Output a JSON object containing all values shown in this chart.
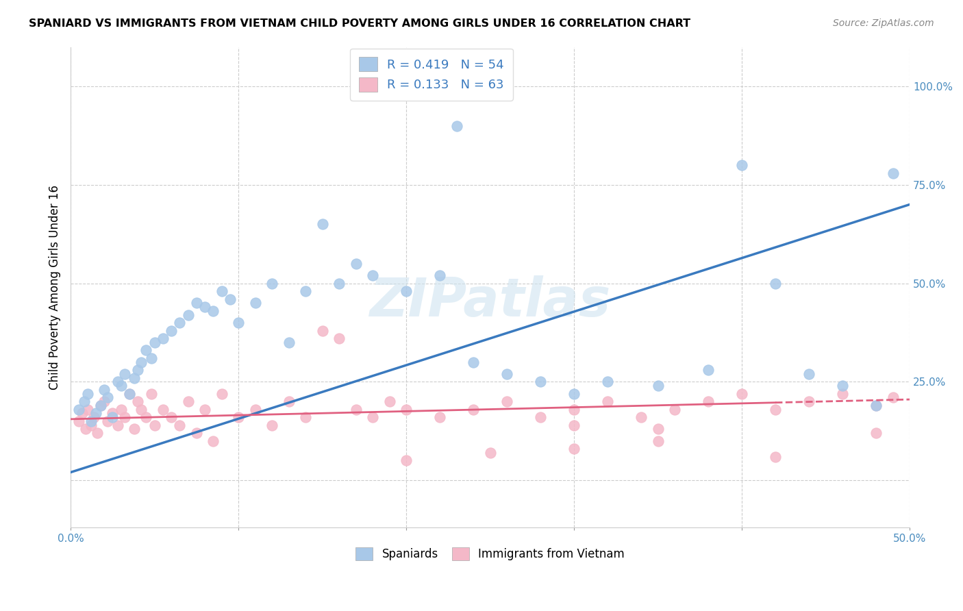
{
  "title": "SPANIARD VS IMMIGRANTS FROM VIETNAM CHILD POVERTY AMONG GIRLS UNDER 16 CORRELATION CHART",
  "source": "Source: ZipAtlas.com",
  "ylabel": "Child Poverty Among Girls Under 16",
  "xlim": [
    0.0,
    0.5
  ],
  "ylim": [
    -0.12,
    1.1
  ],
  "xtick_positions": [
    0.0,
    0.1,
    0.2,
    0.3,
    0.4,
    0.5
  ],
  "xticklabels": [
    "0.0%",
    "",
    "",
    "",
    "",
    "50.0%"
  ],
  "ytick_positions": [
    0.0,
    0.25,
    0.5,
    0.75,
    1.0
  ],
  "yticklabels": [
    "",
    "25.0%",
    "50.0%",
    "75.0%",
    "100.0%"
  ],
  "blue_R": 0.419,
  "blue_N": 54,
  "pink_R": 0.133,
  "pink_N": 63,
  "blue_color": "#a8c8e8",
  "pink_color": "#f4b8c8",
  "blue_line_color": "#3a7abf",
  "pink_line_color": "#e06080",
  "watermark": "ZIPatlas",
  "blue_scatter_x": [
    0.005,
    0.008,
    0.01,
    0.012,
    0.015,
    0.018,
    0.02,
    0.022,
    0.025,
    0.028,
    0.03,
    0.032,
    0.035,
    0.038,
    0.04,
    0.042,
    0.045,
    0.048,
    0.05,
    0.055,
    0.06,
    0.065,
    0.07,
    0.075,
    0.08,
    0.085,
    0.09,
    0.095,
    0.1,
    0.11,
    0.12,
    0.13,
    0.14,
    0.15,
    0.16,
    0.17,
    0.18,
    0.2,
    0.22,
    0.24,
    0.26,
    0.28,
    0.3,
    0.32,
    0.35,
    0.38,
    0.4,
    0.42,
    0.44,
    0.46,
    0.48,
    0.49,
    0.2,
    0.23
  ],
  "blue_scatter_y": [
    0.18,
    0.2,
    0.22,
    0.15,
    0.17,
    0.19,
    0.23,
    0.21,
    0.16,
    0.25,
    0.24,
    0.27,
    0.22,
    0.26,
    0.28,
    0.3,
    0.33,
    0.31,
    0.35,
    0.36,
    0.38,
    0.4,
    0.42,
    0.45,
    0.44,
    0.43,
    0.48,
    0.46,
    0.4,
    0.45,
    0.5,
    0.35,
    0.48,
    0.65,
    0.5,
    0.55,
    0.52,
    0.48,
    0.52,
    0.3,
    0.27,
    0.25,
    0.22,
    0.25,
    0.24,
    0.28,
    0.8,
    0.5,
    0.27,
    0.24,
    0.19,
    0.78,
    1.0,
    0.9
  ],
  "pink_scatter_x": [
    0.005,
    0.007,
    0.009,
    0.01,
    0.012,
    0.014,
    0.016,
    0.018,
    0.02,
    0.022,
    0.025,
    0.028,
    0.03,
    0.032,
    0.035,
    0.038,
    0.04,
    0.042,
    0.045,
    0.048,
    0.05,
    0.055,
    0.06,
    0.065,
    0.07,
    0.075,
    0.08,
    0.085,
    0.09,
    0.1,
    0.11,
    0.12,
    0.13,
    0.14,
    0.15,
    0.16,
    0.17,
    0.18,
    0.19,
    0.2,
    0.22,
    0.24,
    0.26,
    0.28,
    0.3,
    0.32,
    0.34,
    0.36,
    0.38,
    0.4,
    0.42,
    0.44,
    0.46,
    0.48,
    0.49,
    0.2,
    0.25,
    0.3,
    0.35,
    0.42,
    0.48,
    0.3,
    0.35
  ],
  "pink_scatter_y": [
    0.15,
    0.17,
    0.13,
    0.18,
    0.14,
    0.16,
    0.12,
    0.19,
    0.2,
    0.15,
    0.17,
    0.14,
    0.18,
    0.16,
    0.22,
    0.13,
    0.2,
    0.18,
    0.16,
    0.22,
    0.14,
    0.18,
    0.16,
    0.14,
    0.2,
    0.12,
    0.18,
    0.1,
    0.22,
    0.16,
    0.18,
    0.14,
    0.2,
    0.16,
    0.38,
    0.36,
    0.18,
    0.16,
    0.2,
    0.18,
    0.16,
    0.18,
    0.2,
    0.16,
    0.18,
    0.2,
    0.16,
    0.18,
    0.2,
    0.22,
    0.18,
    0.2,
    0.22,
    0.19,
    0.21,
    0.05,
    0.07,
    0.08,
    0.1,
    0.06,
    0.12,
    0.14,
    0.13
  ]
}
